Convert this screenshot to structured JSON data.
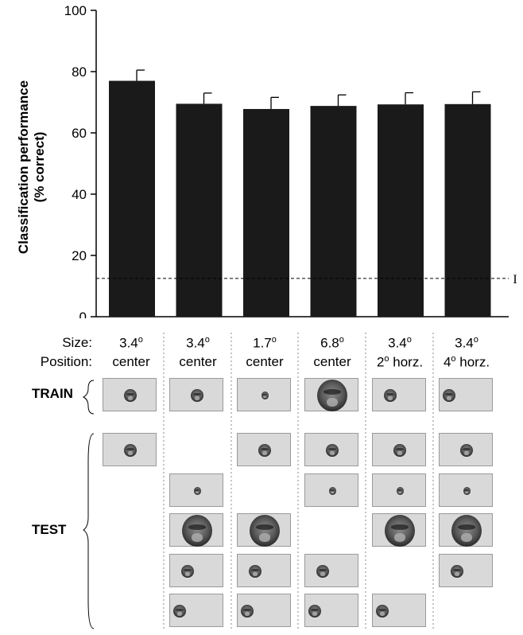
{
  "chart_data": {
    "type": "bar",
    "ylabel_lines": [
      "Classification performance",
      "(% correct)"
    ],
    "ylim": [
      0,
      100
    ],
    "yticks": [
      0,
      20,
      40,
      60,
      80,
      100
    ],
    "values": [
      77,
      69.5,
      67.8,
      68.8,
      69.3,
      69.4
    ],
    "error": [
      3.5,
      3.5,
      3.8,
      3.6,
      3.8,
      4.0
    ],
    "chance_level": 12.5,
    "chance_marker": "I",
    "bar_color": "#1a1a1a"
  },
  "rows": {
    "size_label": "Size:",
    "position_label": "Position:",
    "train_label": "TRAIN",
    "test_label": "TEST"
  },
  "conditions": [
    {
      "size": "3.4",
      "size_sup": "o",
      "position": "center",
      "position_sup": ""
    },
    {
      "size": "3.4",
      "size_sup": "o",
      "position": "center",
      "position_sup": ""
    },
    {
      "size": "1.7",
      "size_sup": "o",
      "position": "center",
      "position_sup": ""
    },
    {
      "size": "6.8",
      "size_sup": "o",
      "position": "center",
      "position_sup": ""
    },
    {
      "size": "3.4",
      "size_sup": "o",
      "position": "horz.",
      "position_pre": "2",
      "position_sup": "o"
    },
    {
      "size": "3.4",
      "size_sup": "o",
      "position": "horz.",
      "position_pre": "4",
      "position_sup": "o"
    }
  ],
  "stimuli": {
    "train": [
      "m-center",
      "m-center",
      "s-center",
      "l-center",
      "m-h2",
      "m-h4"
    ],
    "test": [
      [
        "m-center",
        null,
        "m-center",
        "m-center",
        "m-center",
        "m-center"
      ],
      [
        null,
        "s-center",
        null,
        "s-center",
        "s-center",
        "s-center"
      ],
      [
        null,
        "l-center",
        "l-center",
        null,
        "l-center",
        "l-center"
      ],
      [
        null,
        "m-h2",
        "m-h2",
        "m-h2",
        null,
        "m-h2"
      ],
      [
        null,
        "m-h4",
        "m-h4",
        "m-h4",
        "m-h4",
        null
      ]
    ]
  }
}
